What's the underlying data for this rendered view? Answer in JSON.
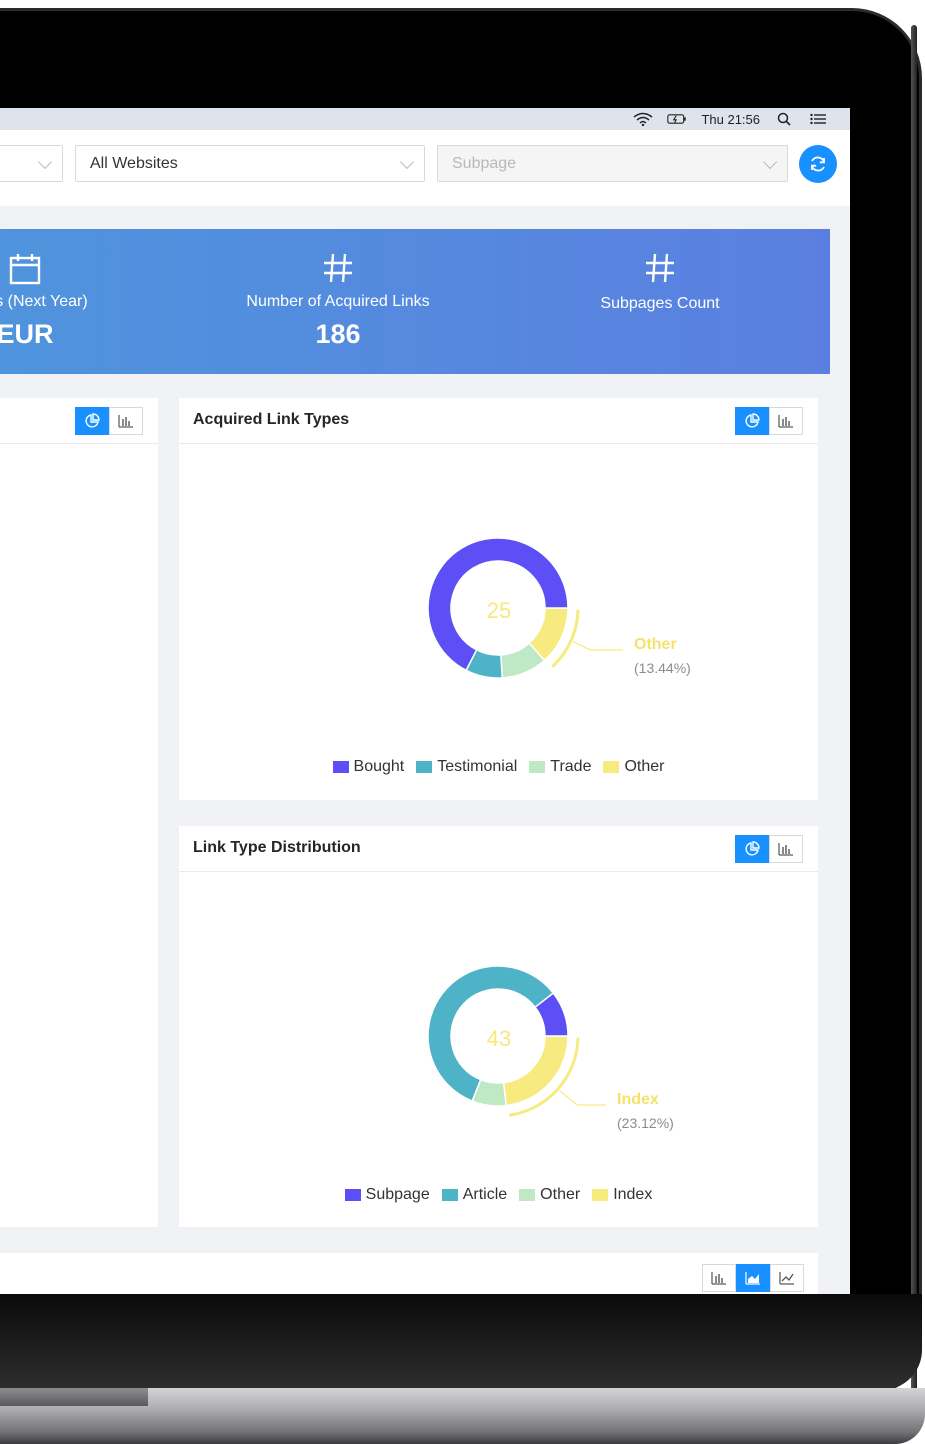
{
  "menubar": {
    "clock": "Thu 21:56"
  },
  "filters": {
    "website": "All Websites",
    "subpage_placeholder": "Subpage"
  },
  "stats": [
    {
      "icon": "calendar-icon",
      "label": "Costs (Next Year)",
      "value": "EUR"
    },
    {
      "icon": "hash-icon",
      "label": "Number of Acquired Links",
      "value": "186"
    },
    {
      "icon": "hash-icon",
      "label": "Subpages Count",
      "value": ""
    }
  ],
  "cards": {
    "link_types": {
      "title": "Acquired Link Types",
      "center": "25",
      "callout": {
        "name": "Other",
        "percent": "(13.44%)"
      },
      "legend": [
        "Bought",
        "Testimonial",
        "Trade",
        "Other"
      ]
    },
    "distribution": {
      "title": "Link Type Distribution",
      "center": "43",
      "callout": {
        "name": "Index",
        "percent": "(23.12%)"
      },
      "legend": [
        "Subpage",
        "Article",
        "Other",
        "Index"
      ]
    }
  },
  "colors": {
    "accent": "#1890ff",
    "purple": "#5b4ff5",
    "teal": "#4fb3c8",
    "green": "#bfe8c4",
    "yellow": "#f7ea7e"
  },
  "chart_data": [
    {
      "type": "pie",
      "title": "Acquired Link Types",
      "categories": [
        "Bought",
        "Testimonial",
        "Trade",
        "Other"
      ],
      "values": [
        67.5,
        8.5,
        10.6,
        13.44
      ],
      "colors": [
        "#5b4ff5",
        "#4fb3c8",
        "#bfe8c4",
        "#f7ea7e"
      ],
      "center_label": "25",
      "highlight": {
        "name": "Other",
        "percent": 13.44
      }
    },
    {
      "type": "pie",
      "title": "Link Type Distribution",
      "categories": [
        "Subpage",
        "Article",
        "Other",
        "Index"
      ],
      "values": [
        10.5,
        58.5,
        7.9,
        23.12
      ],
      "colors": [
        "#5b4ff5",
        "#4fb3c8",
        "#bfe8c4",
        "#f7ea7e"
      ],
      "center_label": "43",
      "highlight": {
        "name": "Index",
        "percent": 23.12
      }
    }
  ]
}
